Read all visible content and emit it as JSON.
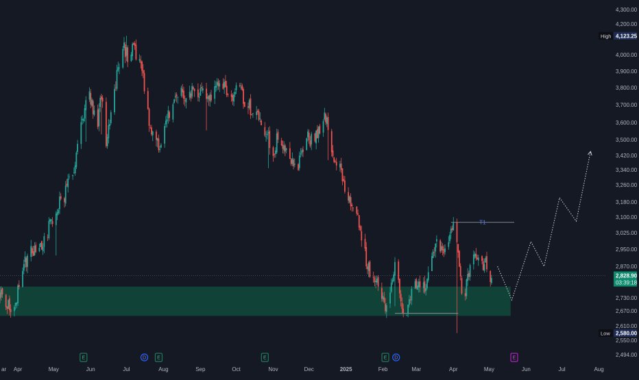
{
  "theme": {
    "background": "#151924",
    "up": "#26a69a",
    "down": "#ef5350",
    "zone": "#0f4a3c",
    "price_tag": "#0e8a6e",
    "axis_text": "#b2b5be",
    "high_low_tag": "#1e2c55",
    "earnings_badge": "#1f7a5a",
    "dividend_badge": "#2962ff",
    "upcoming_badge": "#b020c0"
  },
  "chart_data": {
    "type": "candlestick",
    "title": "",
    "xlabel": "",
    "ylabel": "",
    "ylim": [
      2470,
      4330
    ],
    "x_range": [
      "2024-03-20",
      "2025-08-10"
    ],
    "y_ticks": [
      "4,300.00",
      "4,200.00",
      "4,000.00",
      "3,900.00",
      "3,800.00",
      "3,700.00",
      "3,600.00",
      "3,500.00",
      "3,420.00",
      "3,340.00",
      "3,260.00",
      "3,180.00",
      "3,100.00",
      "3,025.00",
      "2,950.00",
      "2,870.00",
      "2,730.00",
      "2,670.00",
      "2,610.00",
      "2,550.00",
      "2,494.00"
    ],
    "y_tick_values": [
      4300,
      4200,
      4000,
      3900,
      3800,
      3700,
      3600,
      3500,
      3420,
      3340,
      3260,
      3180,
      3100,
      3025,
      2950,
      2870,
      2730,
      2670,
      2610,
      2550,
      2494
    ],
    "x_ticks": [
      "ar",
      "Apr",
      "May",
      "Jun",
      "Jul",
      "Aug",
      "Sep",
      "Oct",
      "Nov",
      "Dec",
      "2025",
      "Feb",
      "Mar",
      "Apr",
      "May",
      "Jun",
      "Jul",
      "Aug"
    ],
    "x_tick_dates": [
      "2024-03-20",
      "2024-04-04",
      "2024-05-04",
      "2024-06-04",
      "2024-07-04",
      "2024-08-04",
      "2024-09-04",
      "2024-10-04",
      "2024-11-04",
      "2024-12-04",
      "2025-01-04",
      "2025-02-04",
      "2025-03-04",
      "2025-04-04",
      "2025-05-04",
      "2025-06-04",
      "2025-07-04",
      "2025-08-04"
    ],
    "price_path": [
      [
        "2024-03-20",
        2760
      ],
      [
        "2024-03-25",
        2720
      ],
      [
        "2024-03-29",
        2660
      ],
      [
        "2024-04-03",
        2740
      ],
      [
        "2024-04-09",
        2880
      ],
      [
        "2024-04-16",
        2940
      ],
      [
        "2024-04-24",
        2980
      ],
      [
        "2024-05-01",
        3060
      ],
      [
        "2024-05-08",
        3160
      ],
      [
        "2024-05-15",
        3240
      ],
      [
        "2024-05-22",
        3380
      ],
      [
        "2024-05-27",
        3560
      ],
      [
        "2024-06-01",
        3820
      ],
      [
        "2024-06-05",
        3700
      ],
      [
        "2024-06-09",
        3560
      ],
      [
        "2024-06-13",
        3760
      ],
      [
        "2024-06-17",
        3430
      ],
      [
        "2024-06-20",
        3600
      ],
      [
        "2024-06-24",
        3800
      ],
      [
        "2024-06-28",
        3960
      ],
      [
        "2024-07-02",
        4050
      ],
      [
        "2024-07-06",
        3980
      ],
      [
        "2024-07-10",
        4060
      ],
      [
        "2024-07-14",
        3950
      ],
      [
        "2024-07-18",
        3880
      ],
      [
        "2024-07-22",
        3650
      ],
      [
        "2024-07-26",
        3520
      ],
      [
        "2024-07-31",
        3460
      ],
      [
        "2024-08-04",
        3560
      ],
      [
        "2024-08-08",
        3640
      ],
      [
        "2024-08-12",
        3720
      ],
      [
        "2024-08-18",
        3780
      ],
      [
        "2024-08-24",
        3740
      ],
      [
        "2024-08-30",
        3800
      ],
      [
        "2024-09-06",
        3760
      ],
      [
        "2024-09-12",
        3720
      ],
      [
        "2024-09-18",
        3790
      ],
      [
        "2024-09-24",
        3820
      ],
      [
        "2024-09-30",
        3760
      ],
      [
        "2024-10-06",
        3790
      ],
      [
        "2024-10-12",
        3720
      ],
      [
        "2024-10-18",
        3660
      ],
      [
        "2024-10-24",
        3600
      ],
      [
        "2024-10-30",
        3520
      ],
      [
        "2024-11-04",
        3440
      ],
      [
        "2024-11-09",
        3540
      ],
      [
        "2024-11-14",
        3460
      ],
      [
        "2024-11-19",
        3400
      ],
      [
        "2024-11-24",
        3300
      ],
      [
        "2024-11-28",
        3460
      ],
      [
        "2024-12-03",
        3520
      ],
      [
        "2024-12-08",
        3480
      ],
      [
        "2024-12-13",
        3560
      ],
      [
        "2024-12-17",
        3660
      ],
      [
        "2024-12-21",
        3520
      ],
      [
        "2024-12-26",
        3400
      ],
      [
        "2024-12-31",
        3320
      ],
      [
        "2025-01-05",
        3220
      ],
      [
        "2025-01-10",
        3160
      ],
      [
        "2025-01-15",
        3080
      ],
      [
        "2025-01-19",
        2940
      ],
      [
        "2025-01-23",
        2860
      ],
      [
        "2025-01-28",
        2820
      ],
      [
        "2025-02-02",
        2760
      ],
      [
        "2025-02-06",
        2700
      ],
      [
        "2025-02-10",
        2760
      ],
      [
        "2025-02-15",
        2900
      ],
      [
        "2025-02-20",
        2700
      ],
      [
        "2025-02-24",
        2660
      ],
      [
        "2025-03-01",
        2760
      ],
      [
        "2025-03-06",
        2800
      ],
      [
        "2025-03-11",
        2760
      ],
      [
        "2025-03-16",
        2880
      ],
      [
        "2025-03-21",
        2960
      ],
      [
        "2025-03-26",
        2940
      ],
      [
        "2025-03-31",
        3000
      ],
      [
        "2025-04-04",
        3080
      ],
      [
        "2025-04-07",
        2980
      ],
      [
        "2025-04-09",
        2880
      ],
      [
        "2025-04-12",
        2700
      ],
      [
        "2025-04-16",
        2820
      ],
      [
        "2025-04-21",
        2900
      ],
      [
        "2025-04-26",
        2870
      ],
      [
        "2025-05-01",
        2880
      ],
      [
        "2025-05-04",
        2780
      ],
      [
        "2025-05-06",
        2829
      ]
    ],
    "last_price": "2,828.90",
    "countdown": "03:39:18",
    "high": {
      "label": "High",
      "value": "4,123.25",
      "date": "2024-07-04",
      "price": 4123.25
    },
    "low": {
      "label": "Low",
      "value": "2,580.00",
      "date": "2025-04-07",
      "price": 2580
    },
    "zone": {
      "from": "2024-03-20",
      "to": "2025-05-22",
      "top": 2780,
      "bottom": 2650
    },
    "projection": [
      [
        "2025-05-11",
        2870
      ],
      [
        "2025-05-23",
        2720
      ],
      [
        "2025-06-08",
        2985
      ],
      [
        "2025-06-19",
        2870
      ],
      [
        "2025-07-02",
        3200
      ],
      [
        "2025-07-16",
        3080
      ],
      [
        "2025-07-28",
        3440
      ]
    ],
    "target": {
      "label": "T1",
      "price": 3075,
      "from": "2025-04-02",
      "to": "2025-05-25"
    },
    "support_line": {
      "price": 2660,
      "from": "2025-02-14",
      "to": "2025-04-08"
    },
    "markers": [
      {
        "label": "E",
        "kind": "earnings",
        "date": "2024-05-29"
      },
      {
        "label": "D",
        "kind": "dividend",
        "date": "2024-07-19"
      },
      {
        "label": "E",
        "kind": "earnings",
        "date": "2024-07-31"
      },
      {
        "label": "E",
        "kind": "earnings",
        "date": "2024-10-28"
      },
      {
        "label": "E",
        "kind": "earnings",
        "date": "2025-02-06"
      },
      {
        "label": "D",
        "kind": "dividend",
        "date": "2025-02-15"
      },
      {
        "label": "E",
        "kind": "upcoming",
        "date": "2025-05-25"
      }
    ]
  }
}
